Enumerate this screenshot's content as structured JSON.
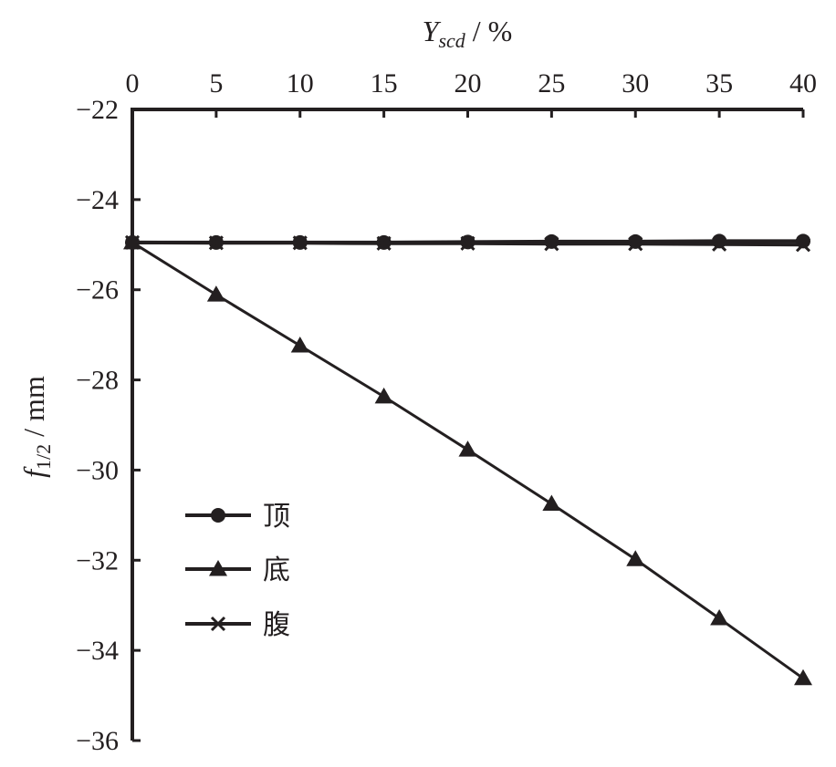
{
  "chart_data": {
    "type": "line",
    "xlabel": {
      "symbol": "Y",
      "subscript": "scd",
      "unit": " / %"
    },
    "ylabel": {
      "symbol": "f",
      "subscript": "1/2",
      "unit": " / mm"
    },
    "x": [
      0,
      5,
      10,
      15,
      20,
      25,
      30,
      35,
      40
    ],
    "xlim": [
      0,
      40
    ],
    "ylim": [
      -36,
      -22
    ],
    "xticks": [
      "0",
      "5",
      "10",
      "15",
      "20",
      "25",
      "30",
      "35",
      "40"
    ],
    "yticks": [
      "−22",
      "−24",
      "−26",
      "−28",
      "−30",
      "−32",
      "−34",
      "−36"
    ],
    "ytick_values": [
      -22,
      -24,
      -26,
      -28,
      -30,
      -32,
      -34,
      -36
    ],
    "x_axis_position": "top",
    "grid": false,
    "legend_position": "bottom-left",
    "series": [
      {
        "name": "顶",
        "marker": "circle",
        "values": [
          -24.95,
          -24.95,
          -24.95,
          -24.95,
          -24.94,
          -24.93,
          -24.93,
          -24.92,
          -24.92
        ]
      },
      {
        "name": "底",
        "marker": "triangle",
        "values": [
          -24.95,
          -26.11,
          -27.24,
          -28.37,
          -29.55,
          -30.75,
          -31.98,
          -33.29,
          -34.62
        ]
      },
      {
        "name": "腹",
        "marker": "cross",
        "values": [
          -24.95,
          -24.96,
          -24.96,
          -24.97,
          -24.97,
          -24.98,
          -24.98,
          -24.99,
          -25.0
        ]
      }
    ]
  }
}
